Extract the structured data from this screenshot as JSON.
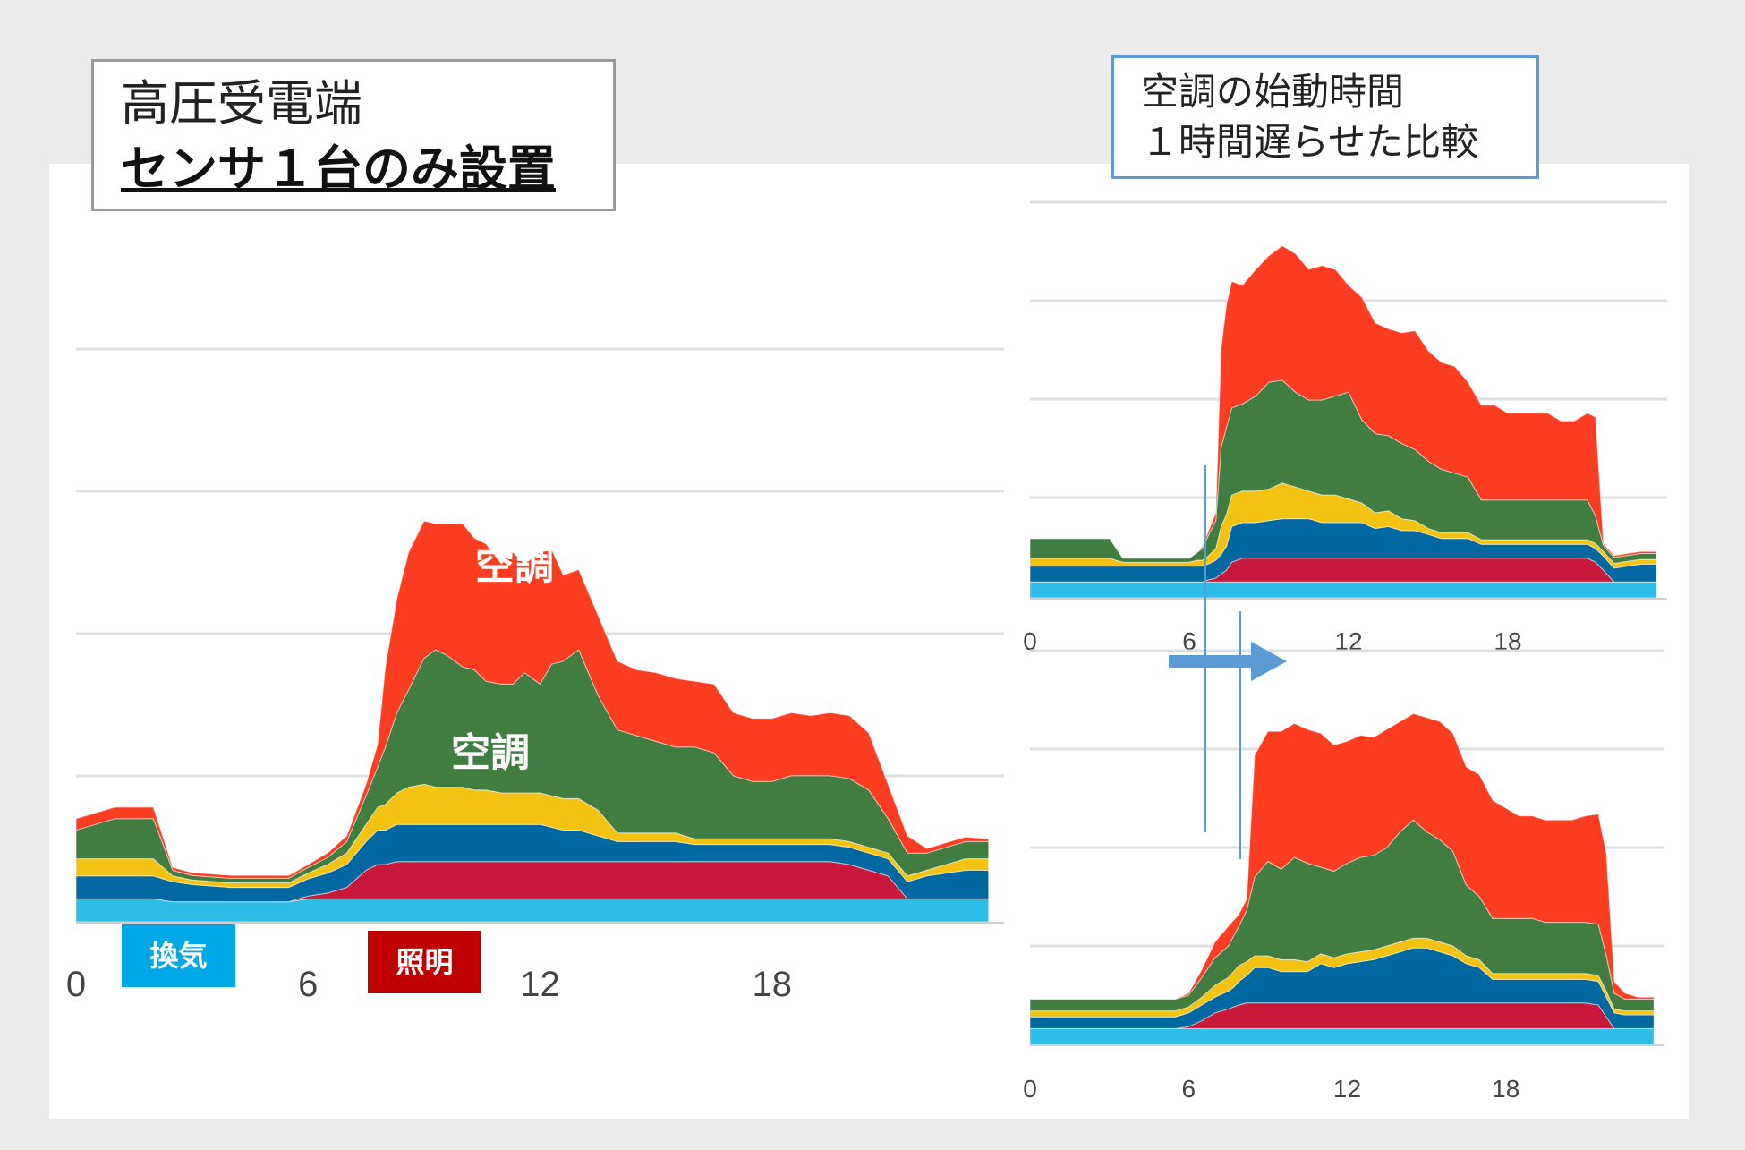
{
  "left_title": {
    "line1": "高圧受電端",
    "line2": "センサ１台のみ設置"
  },
  "right_title": {
    "line1": "空調の始動時間",
    "line2": "１時間遅らせた比較"
  },
  "labels": {
    "aircon_upper": "空調",
    "aircon_lower": "空調",
    "ventilation": "換気",
    "lighting": "照明"
  },
  "colors": {
    "aircon_red": "#fc3d22",
    "aircon_green": "#417d41",
    "yellow": "#f4c211",
    "blue": "#0068a0",
    "lighting_red": "#c8183a",
    "ventilation": "#2ebde6",
    "ventilation_tag": "#00a9e6",
    "lighting_tag": "#c00000",
    "arrow": "#5b9bd5",
    "grid": "#dedede"
  },
  "chart_data": [
    {
      "id": "main",
      "type": "area",
      "stacked": true,
      "xlabel": "",
      "ylabel": "",
      "xlim": [
        0,
        24
      ],
      "ylim": [
        0,
        100
      ],
      "xticks": [
        "0",
        "6",
        "12",
        "18"
      ],
      "x": [
        0,
        0.5,
        1,
        1.5,
        2,
        2.5,
        3,
        4,
        5,
        5.5,
        6,
        6.5,
        7,
        7.5,
        7.8,
        8,
        8.3,
        8.6,
        9,
        9.3,
        9.6,
        10,
        10.3,
        10.6,
        11,
        11.3,
        11.6,
        12,
        12.3,
        12.6,
        13,
        13.5,
        14,
        14.5,
        15,
        15.5,
        16,
        16.5,
        17,
        17.5,
        18,
        18.5,
        19,
        19.5,
        20,
        20.5,
        21,
        21.5,
        22,
        22.5,
        23,
        23.6
      ],
      "series": [
        {
          "name": "換気",
          "values": [
            4,
            4,
            4,
            4,
            4,
            3.5,
            3.5,
            3.5,
            3.5,
            3.5,
            4,
            4,
            4,
            4,
            4,
            4,
            4,
            4,
            4,
            4,
            4,
            4,
            4,
            4,
            4,
            4,
            4,
            4,
            4,
            4,
            4,
            4,
            4,
            4,
            4,
            4,
            4,
            4,
            4,
            4,
            4,
            4,
            4,
            4,
            4,
            4,
            4,
            4,
            4,
            4,
            4,
            4
          ]
        },
        {
          "name": "照明",
          "values": [
            0,
            0,
            0,
            0,
            0,
            0,
            0,
            0,
            0,
            0,
            0.5,
            1,
            2,
            5,
            6,
            6,
            6.5,
            6.5,
            6.5,
            6.5,
            6.5,
            6.5,
            6.5,
            6.5,
            6.5,
            6.5,
            6.5,
            6.5,
            6.5,
            6.5,
            6.5,
            6.5,
            6.5,
            6.5,
            6.5,
            6.5,
            6.5,
            6.5,
            6.5,
            6.5,
            6.5,
            6.5,
            6.5,
            6.5,
            6,
            5,
            4,
            0,
            0,
            0,
            0,
            0
          ]
        },
        {
          "name": "blue",
          "values": [
            4,
            4,
            4,
            4,
            4,
            3.5,
            3,
            2.5,
            2.5,
            2.5,
            3,
            3.5,
            4,
            5,
            6,
            6,
            6.5,
            6.5,
            6.5,
            6.5,
            6.5,
            6.5,
            6.5,
            6.5,
            6.5,
            6.5,
            6.5,
            6.5,
            6,
            5.5,
            5.5,
            4.5,
            3.5,
            3.5,
            3.5,
            3.5,
            3,
            3,
            3,
            3,
            3,
            3,
            3,
            3,
            3,
            3,
            3,
            3,
            4,
            4.5,
            5,
            5
          ]
        },
        {
          "name": "yellow",
          "values": [
            3,
            3,
            3,
            3,
            3,
            1,
            0.8,
            0.8,
            0.8,
            0.8,
            1,
            1.5,
            2,
            3,
            4,
            4.5,
            5.5,
            6.5,
            7,
            6.5,
            6.5,
            6.5,
            6,
            6,
            5.5,
            5.5,
            5.5,
            5.5,
            5.5,
            5.5,
            5.5,
            4.5,
            1.5,
            1.5,
            1.5,
            1.5,
            1,
            1,
            1,
            1,
            1,
            1,
            1,
            1,
            1,
            1,
            1,
            1,
            1,
            1.5,
            2,
            2
          ]
        },
        {
          "name": "空調(緑)",
          "values": [
            5,
            6,
            7,
            7,
            7,
            1,
            0.8,
            0.8,
            0.8,
            0.8,
            1,
            1.2,
            2,
            5,
            7,
            10,
            14,
            17,
            22,
            24,
            23,
            21,
            21,
            19,
            19,
            19,
            21,
            19,
            23,
            24,
            26,
            20,
            18,
            17,
            16,
            15,
            16,
            15,
            11,
            10,
            10,
            11,
            11,
            11,
            11,
            10,
            6,
            4,
            3,
            3,
            3,
            3
          ]
        },
        {
          "name": "空調(赤)",
          "values": [
            2,
            2,
            2,
            2,
            2,
            0.5,
            0.5,
            0.5,
            0.5,
            0.5,
            0.5,
            0.8,
            1,
            2,
            4,
            14,
            20,
            24,
            24,
            22,
            23,
            25,
            23,
            24,
            21,
            23,
            19,
            23,
            20,
            15,
            14,
            14,
            12,
            11.5,
            12,
            12,
            11.5,
            12,
            11,
            11,
            11,
            11,
            10.5,
            11,
            11,
            10,
            6,
            3,
            0.8,
            0.8,
            0.8,
            0.5
          ]
        }
      ]
    },
    {
      "id": "top-right",
      "type": "area",
      "stacked": true,
      "xlim": [
        0,
        24
      ],
      "ylim": [
        0,
        100
      ],
      "xticks": [
        "0",
        "6",
        "12",
        "18"
      ],
      "x": [
        0,
        1,
        2,
        3,
        3.5,
        4,
        5,
        5.5,
        6,
        6.3,
        6.5,
        6.7,
        7,
        7.2,
        7.4,
        7.6,
        8,
        8.5,
        9,
        9.5,
        10,
        10.5,
        11,
        11.5,
        12,
        12.5,
        13,
        13.5,
        14,
        14.5,
        15,
        15.5,
        16,
        16.5,
        17,
        17.5,
        18,
        18.5,
        19,
        19.5,
        20,
        20.5,
        21,
        21.3,
        21.6,
        22,
        22.5,
        23,
        23.6
      ],
      "series": [
        {
          "name": "換気",
          "values": [
            4,
            4,
            4,
            4,
            4,
            4,
            4,
            4,
            4,
            4,
            4,
            4,
            4,
            4,
            4,
            4,
            4,
            4,
            4,
            4,
            4,
            4,
            4,
            4,
            4,
            4,
            4,
            4,
            4,
            4,
            4,
            4,
            4,
            4,
            4,
            4,
            4,
            4,
            4,
            4,
            4,
            4,
            4,
            4,
            4,
            4,
            4,
            4,
            4
          ]
        },
        {
          "name": "照明",
          "values": [
            0,
            0,
            0,
            0,
            0,
            0,
            0,
            0,
            0,
            0,
            0,
            0.5,
            1,
            2,
            3,
            5,
            6,
            6,
            6,
            6,
            6,
            6,
            6,
            6,
            6,
            6,
            6,
            6,
            6,
            6,
            6,
            6,
            6,
            6,
            6,
            6,
            6,
            6,
            6,
            6,
            6,
            6,
            6,
            5,
            3,
            0,
            0,
            0,
            0
          ]
        },
        {
          "name": "blue",
          "values": [
            4,
            4,
            4,
            4,
            4,
            4,
            4,
            4,
            4,
            4,
            4,
            4,
            4.5,
            5,
            6,
            9,
            9,
            9,
            9.5,
            10,
            10,
            10,
            9,
            9,
            9,
            9,
            7.5,
            8,
            7,
            7,
            6,
            5,
            5,
            5,
            3.5,
            3.5,
            3.5,
            3.5,
            3.5,
            3.5,
            3.5,
            3.5,
            3.5,
            3.5,
            3.5,
            3.5,
            4,
            4.5,
            4.5
          ]
        },
        {
          "name": "yellow",
          "values": [
            2,
            2,
            2,
            2,
            1,
            1,
            1,
            1,
            1,
            1.5,
            1.5,
            2,
            3,
            7,
            8,
            8,
            8,
            8,
            8,
            9,
            8,
            7,
            7,
            7,
            6,
            5,
            4,
            4,
            3,
            2.5,
            1.5,
            1.5,
            1.5,
            1.5,
            1.2,
            1.2,
            1.2,
            1.2,
            1.2,
            1.2,
            1.2,
            1.2,
            1.2,
            1.2,
            1.2,
            1.2,
            1.2,
            1.2,
            1.2
          ]
        },
        {
          "name": "空調(緑)",
          "values": [
            5,
            5,
            5,
            5,
            1,
            1,
            1,
            1,
            1,
            2,
            3,
            5,
            7,
            20,
            22,
            22,
            22,
            24,
            27,
            26,
            24,
            23,
            24,
            25,
            27,
            21,
            20,
            19,
            19,
            18,
            17,
            16,
            15,
            14,
            10,
            10,
            10,
            10,
            10,
            10,
            10,
            10,
            10,
            7,
            1.5,
            1.5,
            1.5,
            1.5,
            1.5
          ]
        },
        {
          "name": "空調(赤)",
          "values": [
            0,
            0,
            0,
            0,
            0,
            0,
            0,
            0,
            0,
            0,
            0.5,
            1,
            2,
            25,
            31,
            32,
            30,
            32,
            32,
            34,
            35,
            33,
            34,
            32,
            27,
            31,
            28,
            27,
            28,
            30,
            28,
            27,
            27,
            24,
            24,
            24,
            22,
            22,
            22,
            22,
            20,
            20,
            22,
            25,
            0.5,
            0.5,
            0.5,
            0.5,
            0.5
          ]
        }
      ]
    },
    {
      "id": "bottom-right",
      "type": "area",
      "stacked": true,
      "xlim": [
        0,
        24
      ],
      "ylim": [
        0,
        100
      ],
      "xticks": [
        "0",
        "6",
        "12",
        "18"
      ],
      "x": [
        0,
        1,
        2,
        3,
        4,
        5,
        5.5,
        6,
        6.5,
        7,
        7.5,
        7.7,
        7.9,
        8.2,
        8.5,
        9,
        9.5,
        10,
        10.5,
        11,
        11.5,
        12,
        12.5,
        13,
        13.5,
        14,
        14.5,
        15,
        15.5,
        16,
        16.5,
        17,
        17.5,
        18,
        18.5,
        19,
        19.5,
        20,
        20.5,
        21,
        21.5,
        21.8,
        22.1,
        22.5,
        23,
        23.6
      ],
      "series": [
        {
          "name": "換気",
          "values": [
            4,
            4,
            4,
            4,
            4,
            4,
            4,
            4,
            4,
            4,
            4,
            4,
            4,
            4,
            4,
            4,
            4,
            4,
            4,
            4,
            4,
            4,
            4,
            4,
            4,
            4,
            4,
            4,
            4,
            4,
            4,
            4,
            4,
            4,
            4,
            4,
            4,
            4,
            4,
            4,
            4,
            4,
            4,
            4,
            4,
            4
          ]
        },
        {
          "name": "照明",
          "values": [
            0,
            0,
            0,
            0,
            0,
            0,
            0,
            0.5,
            2,
            4,
            5,
            5.5,
            6,
            6.5,
            6.5,
            6.5,
            6.5,
            6.5,
            6.5,
            6.5,
            6.5,
            6.5,
            6.5,
            6.5,
            6.5,
            6.5,
            6.5,
            6.5,
            6.5,
            6.5,
            6.5,
            6.5,
            6.5,
            6.5,
            6.5,
            6.5,
            6.5,
            6.5,
            6.5,
            6.5,
            6,
            3,
            0,
            0,
            0,
            0
          ]
        },
        {
          "name": "blue",
          "values": [
            3,
            3,
            3,
            3,
            3,
            3,
            3,
            3.5,
            4,
            4,
            4.5,
            5,
            6,
            7,
            9,
            9,
            8,
            8,
            8,
            10,
            9,
            10,
            10.5,
            11,
            12,
            13,
            14,
            14,
            13,
            12,
            10,
            9,
            6,
            6,
            6,
            6,
            6,
            6,
            6,
            6,
            6,
            5,
            4,
            3.5,
            3.5,
            3.5
          ]
        },
        {
          "name": "yellow",
          "values": [
            1.5,
            1.5,
            1.5,
            1.5,
            1.5,
            1.5,
            1.5,
            1.5,
            2,
            3,
            3.5,
            4,
            4,
            3.5,
            3,
            3,
            3,
            3,
            2.5,
            2.5,
            2.5,
            2.5,
            2.5,
            2.5,
            2.5,
            2.5,
            2.5,
            2.5,
            2.5,
            2.5,
            2,
            2,
            1.5,
            1.5,
            1.5,
            1.5,
            1.5,
            1.5,
            1.5,
            1.5,
            1.5,
            1.5,
            1,
            1,
            1,
            1
          ]
        },
        {
          "name": "空調(緑)",
          "values": [
            3,
            3,
            3,
            3,
            3,
            3,
            3,
            3,
            5,
            7,
            8,
            9,
            10,
            13,
            20,
            24,
            23,
            26,
            25,
            22,
            22,
            23,
            24,
            24,
            25,
            28,
            30,
            27,
            26,
            24,
            18,
            16,
            14,
            14,
            14,
            14,
            13,
            13,
            13,
            13,
            13,
            9,
            4,
            3,
            3,
            3
          ]
        },
        {
          "name": "空調(赤)",
          "values": [
            0,
            0,
            0,
            0,
            0,
            0,
            0,
            0.5,
            2,
            4,
            5,
            4,
            3,
            3,
            31,
            33,
            35,
            34,
            34,
            34,
            32,
            31,
            31,
            30,
            30,
            28,
            27,
            29,
            30,
            30,
            30,
            31,
            30,
            28,
            26,
            26,
            26,
            26,
            26,
            27,
            28,
            26,
            3,
            1.5,
            0.5,
            0.5
          ]
        }
      ]
    }
  ]
}
